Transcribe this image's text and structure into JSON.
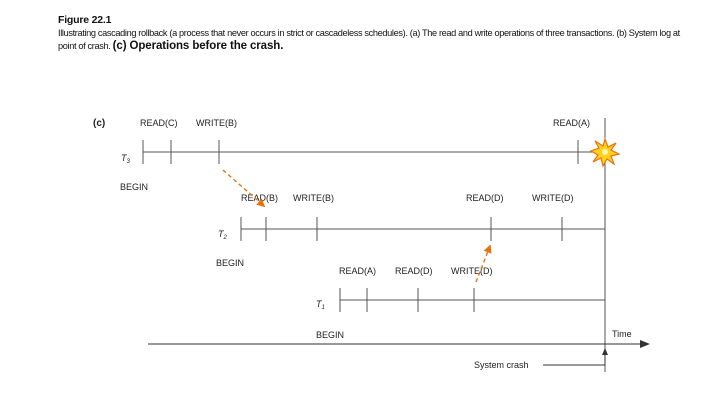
{
  "figure": {
    "number": "Figure 22.1",
    "caption_plain": "Illustrating cascading rollback (a process that never occurs in strict or cascadeless schedules). (a) The read and write operations of three transactions. (b) System log at point of crash.",
    "caption_bold": "(c) Operations before the crash."
  },
  "diagram": {
    "panel_label": "(c)",
    "transactions": [
      {
        "name": "T",
        "subscript": "3",
        "begin_label": "BEGIN",
        "operations": [
          "READ(C)",
          "WRITE(B)",
          "READ(A)"
        ]
      },
      {
        "name": "T",
        "subscript": "2",
        "begin_label": "BEGIN",
        "operations": [
          "READ(B)",
          "WRITE(B)",
          "READ(D)",
          "WRITE(D)"
        ]
      },
      {
        "name": "T",
        "subscript": "1",
        "begin_label": "BEGIN",
        "operations": [
          "READ(A)",
          "READ(D)",
          "WRITE(D)"
        ]
      }
    ],
    "time_label": "Time",
    "crash_label": "System crash",
    "colors": {
      "line": "#444444",
      "dependency_arrow": "#e8720c",
      "crash_burst": "#ffd21f",
      "crash_outline": "#e8720c"
    }
  }
}
